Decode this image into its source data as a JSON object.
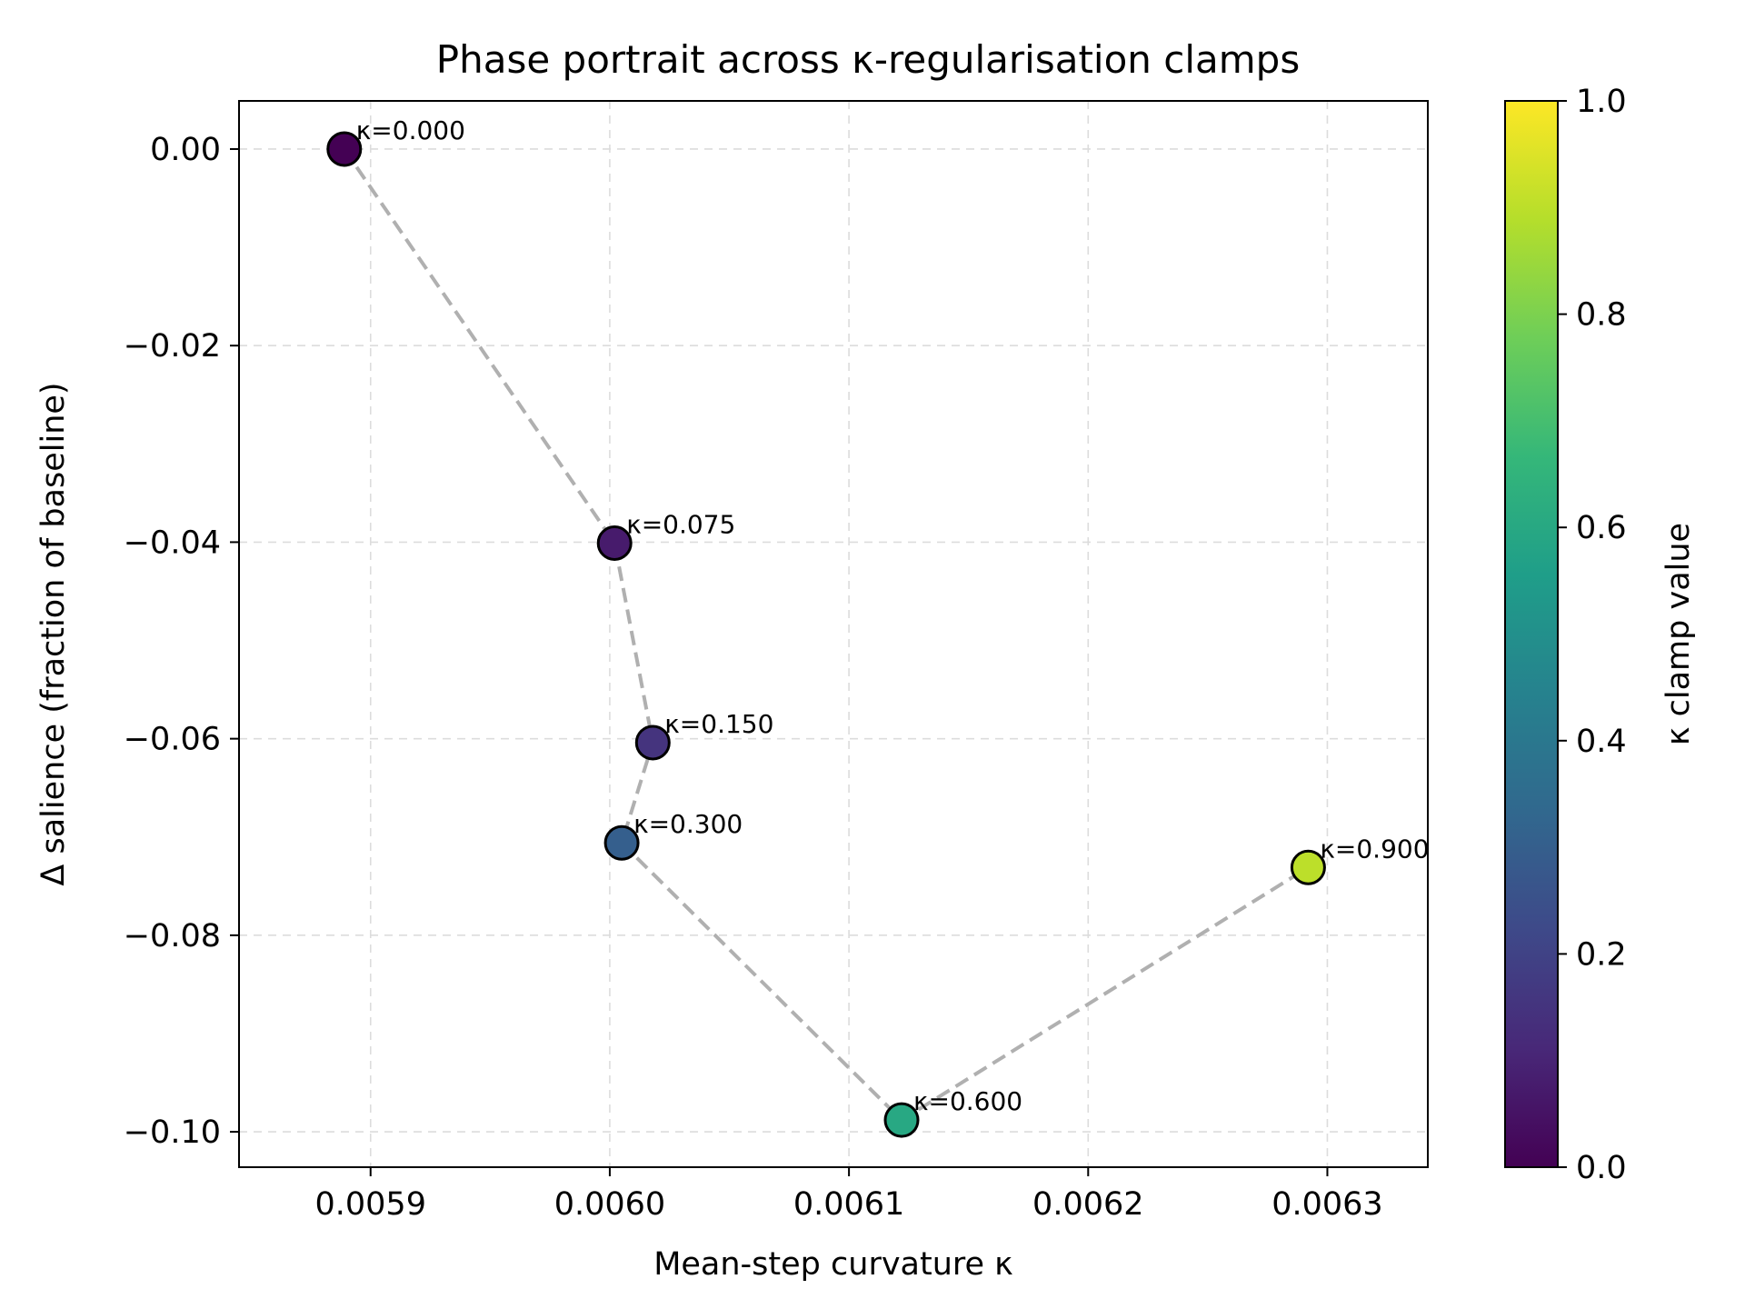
{
  "chart_data": {
    "type": "scatter",
    "title": "Phase portrait across κ-regularisation clamps",
    "xlabel": "Mean-step curvature  κ",
    "ylabel": "Δ salience  (fraction of baseline)",
    "xlim": [
      0.005845,
      0.006342
    ],
    "ylim": [
      -0.1036,
      0.0049
    ],
    "xticks": [
      0.0059,
      0.006,
      0.0061,
      0.0062,
      0.0063
    ],
    "xtick_labels": [
      "0.0059",
      "0.0060",
      "0.0061",
      "0.0062",
      "0.0063"
    ],
    "yticks": [
      0.0,
      -0.02,
      -0.04,
      -0.06,
      -0.08,
      -0.1
    ],
    "ytick_labels": [
      "0.00",
      "−0.02",
      "−0.04",
      "−0.06",
      "−0.08",
      "−0.10"
    ],
    "grid": true,
    "connector": {
      "style": "dashed",
      "color": "#b0b0b0"
    },
    "points": [
      {
        "label": "κ=0.000",
        "clamp": 0.0,
        "x": 0.005889,
        "y": 0.0
      },
      {
        "label": "κ=0.075",
        "clamp": 0.075,
        "x": 0.006002,
        "y": -0.0401
      },
      {
        "label": "κ=0.150",
        "clamp": 0.15,
        "x": 0.006018,
        "y": -0.0604
      },
      {
        "label": "κ=0.300",
        "clamp": 0.3,
        "x": 0.006005,
        "y": -0.0706
      },
      {
        "label": "κ=0.600",
        "clamp": 0.6,
        "x": 0.006122,
        "y": -0.0988
      },
      {
        "label": "κ=0.900",
        "clamp": 0.9,
        "x": 0.006292,
        "y": -0.0731
      }
    ],
    "colorbar": {
      "label": "κ clamp value",
      "range": [
        0.0,
        1.0
      ],
      "ticks": [
        0.0,
        0.2,
        0.4,
        0.6,
        0.8,
        1.0
      ],
      "tick_labels": [
        "0.0",
        "0.2",
        "0.4",
        "0.6",
        "0.8",
        "1.0"
      ],
      "colormap": "viridis",
      "stops": [
        "#440154",
        "#482878",
        "#3e4989",
        "#31688e",
        "#26828e",
        "#1f9e89",
        "#35b779",
        "#6ece58",
        "#b5de2b",
        "#fde725"
      ]
    }
  }
}
